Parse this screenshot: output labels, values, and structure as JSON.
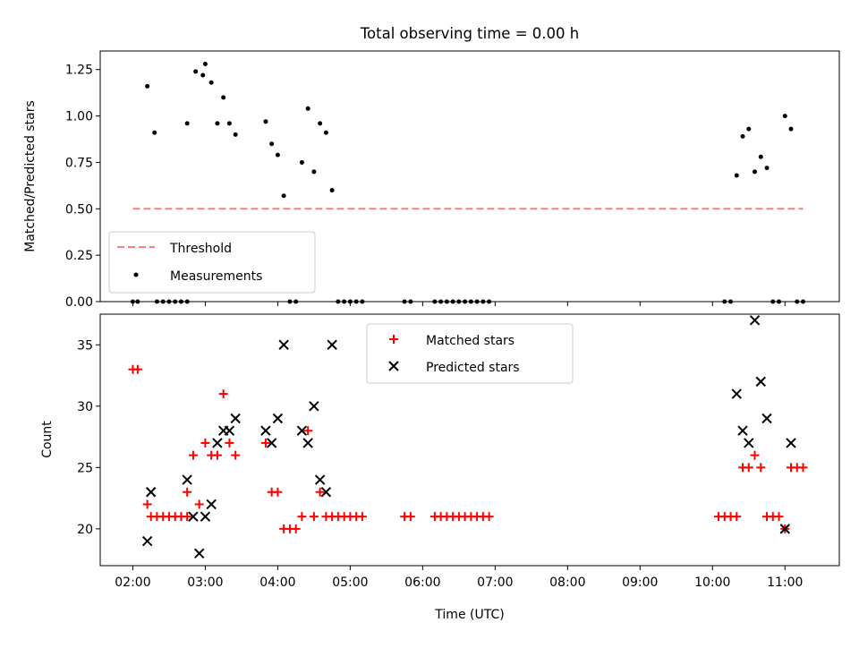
{
  "chart_data": [
    {
      "type": "scatter",
      "title": "Total observing time = 0.00 h",
      "xlabel": "",
      "ylabel": "Matched/Predicted stars",
      "xlim": [
        "01:33",
        "11:45"
      ],
      "ylim": [
        0,
        1.35
      ],
      "yticks": [
        0.0,
        0.25,
        0.5,
        0.75,
        1.0,
        1.25
      ],
      "ytick_labels": [
        "0.00",
        "0.25",
        "0.50",
        "0.75",
        "1.00",
        "1.25"
      ],
      "legend_position": "lower-left",
      "threshold": {
        "name": "Threshold",
        "value": 0.5,
        "x_start": "02:00",
        "x_end": "11:15",
        "color": "#ff7f7f"
      },
      "series": [
        {
          "name": "Measurements",
          "color": "#000000",
          "points": [
            [
              "02:00",
              0
            ],
            [
              "02:04",
              0
            ],
            [
              "02:12",
              1.16
            ],
            [
              "02:18",
              0.91
            ],
            [
              "02:20",
              0
            ],
            [
              "02:25",
              0
            ],
            [
              "02:30",
              0
            ],
            [
              "02:35",
              0
            ],
            [
              "02:40",
              0
            ],
            [
              "02:45",
              0
            ],
            [
              "02:45",
              0.96
            ],
            [
              "02:52",
              1.24
            ],
            [
              "02:58",
              1.22
            ],
            [
              "03:00",
              1.28
            ],
            [
              "03:05",
              1.18
            ],
            [
              "03:10",
              0.96
            ],
            [
              "03:15",
              1.1
            ],
            [
              "03:20",
              0.96
            ],
            [
              "03:25",
              0.9
            ],
            [
              "03:50",
              0.97
            ],
            [
              "03:55",
              0.85
            ],
            [
              "04:00",
              0.79
            ],
            [
              "04:05",
              0.57
            ],
            [
              "04:10",
              0
            ],
            [
              "04:15",
              0
            ],
            [
              "04:20",
              0.75
            ],
            [
              "04:25",
              1.04
            ],
            [
              "04:30",
              0.7
            ],
            [
              "04:35",
              0.96
            ],
            [
              "04:40",
              0.91
            ],
            [
              "04:45",
              0.6
            ],
            [
              "04:50",
              0
            ],
            [
              "04:55",
              0
            ],
            [
              "05:00",
              0
            ],
            [
              "05:05",
              0
            ],
            [
              "05:10",
              0
            ],
            [
              "05:45",
              0
            ],
            [
              "05:50",
              0
            ],
            [
              "06:10",
              0
            ],
            [
              "06:15",
              0
            ],
            [
              "06:20",
              0
            ],
            [
              "06:25",
              0
            ],
            [
              "06:30",
              0
            ],
            [
              "06:35",
              0
            ],
            [
              "06:40",
              0
            ],
            [
              "06:45",
              0
            ],
            [
              "06:50",
              0
            ],
            [
              "06:55",
              0
            ],
            [
              "10:10",
              0
            ],
            [
              "10:15",
              0
            ],
            [
              "10:20",
              0.68
            ],
            [
              "10:25",
              0.89
            ],
            [
              "10:30",
              0.93
            ],
            [
              "10:35",
              0.7
            ],
            [
              "10:40",
              0.78
            ],
            [
              "10:45",
              0.72
            ],
            [
              "10:50",
              0
            ],
            [
              "10:55",
              0
            ],
            [
              "11:00",
              1.0
            ],
            [
              "11:05",
              0.93
            ],
            [
              "11:10",
              0
            ],
            [
              "11:15",
              0
            ]
          ]
        }
      ]
    },
    {
      "type": "scatter",
      "title": "",
      "xlabel": "Time (UTC)",
      "ylabel": "Count",
      "xlim": [
        "01:33",
        "11:45"
      ],
      "ylim": [
        17,
        37.5
      ],
      "yticks": [
        20,
        25,
        30,
        35
      ],
      "ytick_labels": [
        "20",
        "25",
        "30",
        "35"
      ],
      "xticks": [
        "02:00",
        "03:00",
        "04:00",
        "05:00",
        "06:00",
        "07:00",
        "08:00",
        "09:00",
        "10:00",
        "11:00"
      ],
      "xtick_labels": [
        "02:00",
        "03:00",
        "04:00",
        "05:00",
        "06:00",
        "07:00",
        "08:00",
        "09:00",
        "10:00",
        "11:00"
      ],
      "legend_position": "top-center",
      "series": [
        {
          "name": "Matched stars",
          "color": "#ff0000",
          "marker": "plus",
          "points": [
            [
              "02:00",
              33
            ],
            [
              "02:04",
              33
            ],
            [
              "02:12",
              22
            ],
            [
              "02:15",
              21
            ],
            [
              "02:20",
              21
            ],
            [
              "02:25",
              21
            ],
            [
              "02:30",
              21
            ],
            [
              "02:35",
              21
            ],
            [
              "02:40",
              21
            ],
            [
              "02:45",
              21
            ],
            [
              "02:45",
              23
            ],
            [
              "02:50",
              26
            ],
            [
              "02:55",
              22
            ],
            [
              "03:00",
              27
            ],
            [
              "03:05",
              26
            ],
            [
              "03:10",
              26
            ],
            [
              "03:15",
              31
            ],
            [
              "03:20",
              27
            ],
            [
              "03:25",
              26
            ],
            [
              "03:50",
              27
            ],
            [
              "03:55",
              23
            ],
            [
              "04:00",
              23
            ],
            [
              "04:05",
              20
            ],
            [
              "04:10",
              20
            ],
            [
              "04:15",
              20
            ],
            [
              "04:20",
              21
            ],
            [
              "04:25",
              28
            ],
            [
              "04:30",
              21
            ],
            [
              "04:35",
              23
            ],
            [
              "04:40",
              21
            ],
            [
              "04:45",
              21
            ],
            [
              "04:50",
              21
            ],
            [
              "04:55",
              21
            ],
            [
              "05:00",
              21
            ],
            [
              "05:05",
              21
            ],
            [
              "05:10",
              21
            ],
            [
              "05:45",
              21
            ],
            [
              "05:50",
              21
            ],
            [
              "06:10",
              21
            ],
            [
              "06:15",
              21
            ],
            [
              "06:20",
              21
            ],
            [
              "06:25",
              21
            ],
            [
              "06:30",
              21
            ],
            [
              "06:35",
              21
            ],
            [
              "06:40",
              21
            ],
            [
              "06:45",
              21
            ],
            [
              "06:50",
              21
            ],
            [
              "06:55",
              21
            ],
            [
              "10:05",
              21
            ],
            [
              "10:10",
              21
            ],
            [
              "10:15",
              21
            ],
            [
              "10:20",
              21
            ],
            [
              "10:25",
              25
            ],
            [
              "10:30",
              25
            ],
            [
              "10:35",
              26
            ],
            [
              "10:40",
              25
            ],
            [
              "10:45",
              21
            ],
            [
              "10:50",
              21
            ],
            [
              "10:55",
              21
            ],
            [
              "11:00",
              20
            ],
            [
              "11:05",
              25
            ],
            [
              "11:10",
              25
            ],
            [
              "11:15",
              25
            ]
          ]
        },
        {
          "name": "Predicted stars",
          "color": "#000000",
          "marker": "x",
          "points": [
            [
              "02:12",
              19
            ],
            [
              "02:15",
              23
            ],
            [
              "02:45",
              24
            ],
            [
              "02:50",
              21
            ],
            [
              "02:55",
              18
            ],
            [
              "03:00",
              21
            ],
            [
              "03:05",
              22
            ],
            [
              "03:10",
              27
            ],
            [
              "03:15",
              28
            ],
            [
              "03:20",
              28
            ],
            [
              "03:25",
              29
            ],
            [
              "03:50",
              28
            ],
            [
              "03:55",
              27
            ],
            [
              "04:00",
              29
            ],
            [
              "04:05",
              35
            ],
            [
              "04:20",
              28
            ],
            [
              "04:25",
              27
            ],
            [
              "04:30",
              30
            ],
            [
              "04:35",
              24
            ],
            [
              "04:40",
              23
            ],
            [
              "04:45",
              35
            ],
            [
              "10:20",
              31
            ],
            [
              "10:25",
              28
            ],
            [
              "10:30",
              27
            ],
            [
              "10:35",
              37
            ],
            [
              "10:40",
              32
            ],
            [
              "10:45",
              29
            ],
            [
              "11:00",
              20
            ],
            [
              "11:05",
              27
            ]
          ]
        }
      ]
    }
  ]
}
